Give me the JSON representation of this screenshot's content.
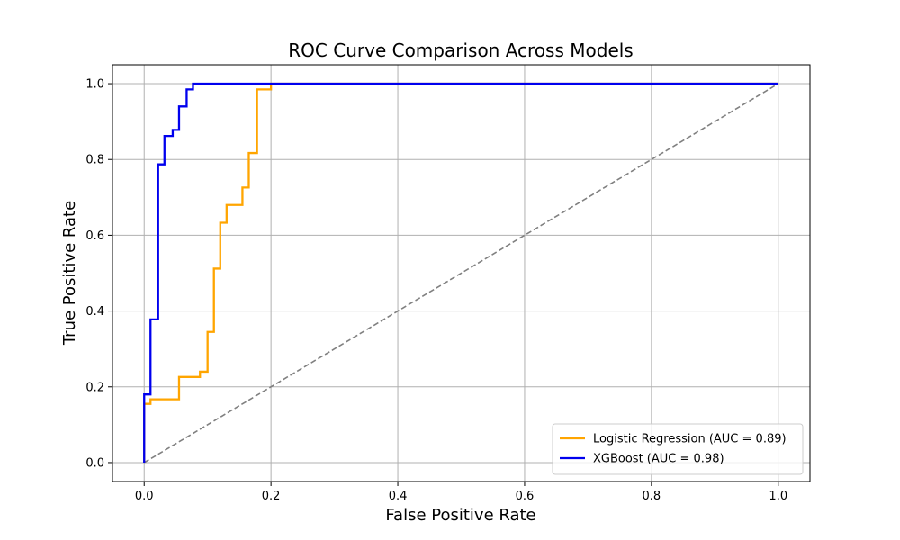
{
  "chart_data": {
    "type": "line",
    "title": "ROC Curve Comparison Across Models",
    "xlabel": "False Positive Rate",
    "ylabel": "True Positive Rate",
    "xlim": [
      -0.05,
      1.05
    ],
    "ylim": [
      -0.05,
      1.05
    ],
    "xticks": [
      "0.0",
      "0.2",
      "0.4",
      "0.6",
      "0.8",
      "1.0"
    ],
    "yticks": [
      "0.0",
      "0.2",
      "0.4",
      "0.6",
      "0.8",
      "1.0"
    ],
    "grid": true,
    "legend_position": "lower-right",
    "series": [
      {
        "name": "Logistic Regression (AUC = 0.89)",
        "color": "#FFA500",
        "style": "solid",
        "x": [
          0.0,
          0.0,
          0.01,
          0.01,
          0.055,
          0.055,
          0.088,
          0.088,
          0.1,
          0.1,
          0.11,
          0.11,
          0.12,
          0.12,
          0.13,
          0.13,
          0.155,
          0.155,
          0.165,
          0.165,
          0.178,
          0.178,
          0.2,
          0.2,
          1.0
        ],
        "y": [
          0.0,
          0.155,
          0.155,
          0.167,
          0.167,
          0.226,
          0.226,
          0.24,
          0.24,
          0.345,
          0.345,
          0.512,
          0.512,
          0.633,
          0.633,
          0.68,
          0.68,
          0.726,
          0.726,
          0.817,
          0.817,
          0.985,
          0.985,
          1.0,
          1.0
        ]
      },
      {
        "name": "XGBoost (AUC = 0.98)",
        "color": "#0000EE",
        "style": "solid",
        "x": [
          0.0,
          0.0,
          0.01,
          0.01,
          0.022,
          0.022,
          0.032,
          0.032,
          0.045,
          0.045,
          0.055,
          0.055,
          0.067,
          0.067,
          0.077,
          0.077,
          1.0
        ],
        "y": [
          0.0,
          0.18,
          0.18,
          0.378,
          0.378,
          0.787,
          0.787,
          0.862,
          0.862,
          0.878,
          0.878,
          0.94,
          0.94,
          0.985,
          0.985,
          1.0,
          1.0
        ]
      },
      {
        "name": "",
        "color": "#808080",
        "style": "dashed",
        "x": [
          0.0,
          1.0
        ],
        "y": [
          0.0,
          1.0
        ]
      }
    ]
  }
}
